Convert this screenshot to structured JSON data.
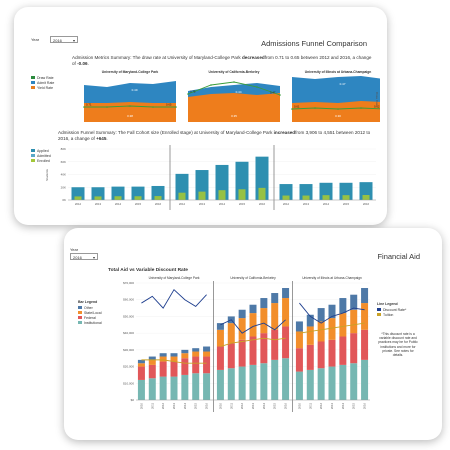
{
  "funnel": {
    "title": "Admissions Funnel Comparison",
    "year_label": "Year",
    "year_value": "2016",
    "summary_top": {
      "pre": "Admission Metrics Summary: The draw rate at University of Maryland-College Park ",
      "verb": "decreased",
      "mid": "from 0.71 to 0.65 between 2012 and 2016, a change of ",
      "change": "-0.06",
      "post": "."
    },
    "summary_bottom": {
      "pre": "Admission Funnel Summary: The Fall Cohort size (Enrolled stage) at University of Maryland-College Park ",
      "verb": "increased",
      "mid": "from 3,906 to 4,551 between 2012 to 2016, a change of ",
      "change": "+645",
      "post": "."
    },
    "legend_top": [
      {
        "label": "Draw Rate",
        "color": "#2b8a3e"
      },
      {
        "label": "Admit Rate",
        "color": "#2e86c1"
      },
      {
        "label": "Yield Rate",
        "color": "#e67e22"
      }
    ],
    "legend_bottom": [
      {
        "label": "Applied",
        "color": "#2e8fb0"
      },
      {
        "label": "Admitted",
        "color": "#5aa9c8"
      },
      {
        "label": "Enrolled",
        "color": "#a2c739"
      }
    ],
    "right_axis_label": "Draw Rate",
    "left_axis_label": "Students",
    "y_ticks_bottom": [
      "80K",
      "60K",
      "40K",
      "20K",
      "0K"
    ],
    "panels": [
      {
        "name": "University of Maryland-College Park",
        "admit_area_label": "0.49",
        "yield_area_label": "0.38",
        "draw_label": "0.71",
        "draw_label_end": "0.65",
        "applied": [
          20,
          20,
          21,
          21,
          22
        ]
      },
      {
        "name": "University of California-Berkeley",
        "admit_area_label": "0.44",
        "yield_area_label": "0.35",
        "draw_label": "0.75",
        "draw_label_end": "0.47",
        "applied": [
          41,
          47,
          55,
          60,
          68
        ]
      },
      {
        "name": "University of Illinois at Urbana-Champaign",
        "admit_area_label": "0.47",
        "yield_area_label": "0.30",
        "draw_label": "0.61",
        "draw_label_end": "0.62",
        "applied": [
          25,
          25,
          27,
          27,
          28
        ]
      }
    ],
    "years": [
      "2012",
      "2013",
      "2014",
      "2015",
      "2016"
    ]
  },
  "aid": {
    "title": "Financial Aid",
    "year_label": "Year",
    "year_value": "2016",
    "chart_title": "Total Aid vs Variable Discount Rate",
    "bar_legend_title": "Bar Legend",
    "bar_legend": [
      {
        "label": "Other",
        "color": "#4e79a7"
      },
      {
        "label": "State/Local",
        "color": "#f28e2b"
      },
      {
        "label": "Federal",
        "color": "#e15759"
      },
      {
        "label": "Institutional",
        "color": "#76b7b2"
      }
    ],
    "line_legend_title": "Line Legend",
    "line_legend": [
      {
        "label": "Discount Rate*",
        "color": "#1f3f8f"
      },
      {
        "label": "Tuition",
        "color": "#c9a227"
      }
    ],
    "note": "*This discount rate is a variable discount rate and practices may be for Public institutions and more for private. See notes for details.",
    "y_ticks": [
      "$70,000",
      "$60,000",
      "$50,000",
      "$40,000",
      "$30,000",
      "$20,000",
      "$10,000",
      "$0"
    ],
    "years": [
      "2010",
      "2011",
      "2012",
      "2013",
      "2014",
      "2015",
      "2016"
    ],
    "panels": [
      {
        "name": "University of Maryland-College Park"
      },
      {
        "name": "University of California-Berkeley"
      },
      {
        "name": "University of Illinois at Urbana-Champaign"
      }
    ]
  }
}
